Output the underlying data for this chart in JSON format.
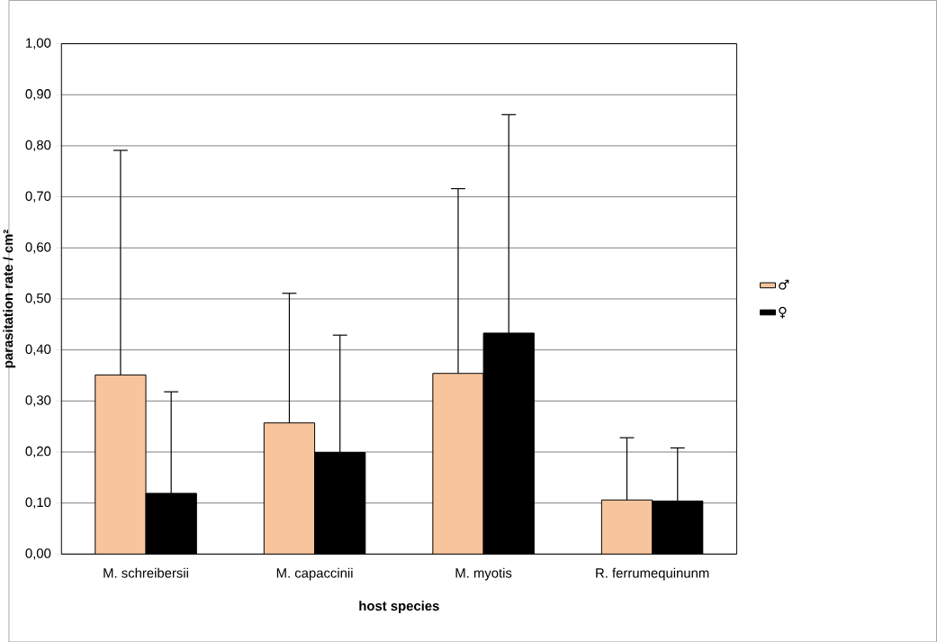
{
  "chart_data": {
    "type": "bar",
    "xlabel": "host species",
    "ylabel": "parasitation rate / cm²",
    "categories": [
      "M. schreibersii",
      "M. capaccinii",
      "M. myotis",
      "R. ferrumequinunm"
    ],
    "series": [
      {
        "name": "♂",
        "color": "#f8c49c",
        "values": [
          0.351,
          0.257,
          0.354,
          0.106
        ],
        "errors": [
          [
            0.351,
            0.791
          ],
          [
            0.257,
            0.511
          ],
          [
            0.354,
            0.716
          ],
          [
            0.106,
            0.228
          ]
        ]
      },
      {
        "name": "♀",
        "color": "#000000",
        "values": [
          0.119,
          0.199,
          0.433,
          0.104
        ],
        "errors": [
          [
            0.119,
            0.318
          ],
          [
            0.199,
            0.429
          ],
          [
            0.433,
            0.861
          ],
          [
            0.104,
            0.208
          ]
        ]
      }
    ],
    "ylim": [
      0,
      1
    ],
    "yticks": [
      {
        "value": 0,
        "label": "0,00"
      },
      {
        "value": 0.1,
        "label": "0,10"
      },
      {
        "value": 0.2,
        "label": "0,20"
      },
      {
        "value": 0.3,
        "label": "0,30"
      },
      {
        "value": 0.4,
        "label": "0,40"
      },
      {
        "value": 0.5,
        "label": "0,50"
      },
      {
        "value": 0.6,
        "label": "0,60"
      },
      {
        "value": 0.7,
        "label": "0,70"
      },
      {
        "value": 0.8,
        "label": "0,80"
      },
      {
        "value": 0.9,
        "label": "0,90"
      },
      {
        "value": 1,
        "label": "1,00"
      }
    ],
    "grid": "y",
    "legend": "right"
  }
}
